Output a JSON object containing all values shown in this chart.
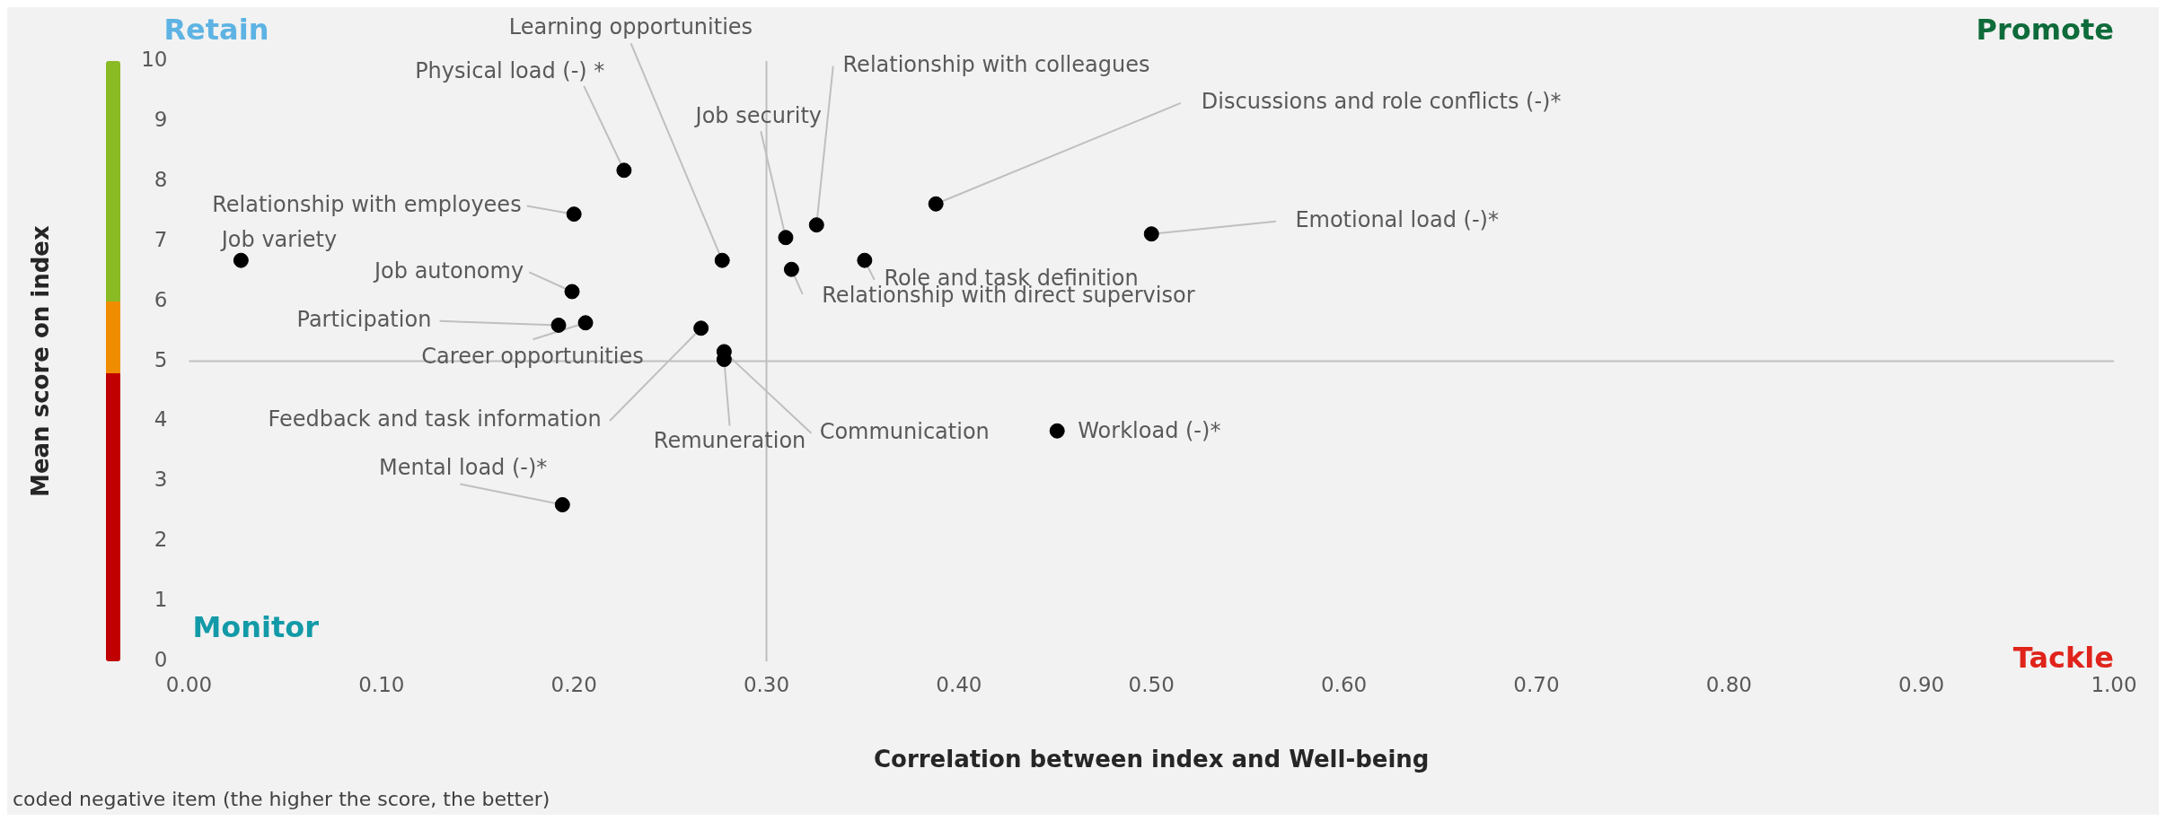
{
  "chart_data": {
    "type": "scatter",
    "xlabel": "Correlation between index and Well-being",
    "ylabel": "Mean score on index",
    "xlim": [
      0,
      1
    ],
    "ylim": [
      0,
      10
    ],
    "xticks": [
      {
        "value": 0,
        "label": "0.00"
      },
      {
        "value": 0.1,
        "label": "0.10"
      },
      {
        "value": 0.2,
        "label": "0.20"
      },
      {
        "value": 0.3,
        "label": "0.30"
      },
      {
        "value": 0.4,
        "label": "0.40"
      },
      {
        "value": 0.5,
        "label": "0.50"
      },
      {
        "value": 0.6,
        "label": "0.60"
      },
      {
        "value": 0.7,
        "label": "0.70"
      },
      {
        "value": 0.8,
        "label": "0.80"
      },
      {
        "value": 0.9,
        "label": "0.90"
      },
      {
        "value": 1,
        "label": "1.00"
      }
    ],
    "yticks": [
      0,
      1,
      2,
      3,
      4,
      5,
      6,
      7,
      8,
      9,
      10
    ],
    "grid": false,
    "legend": false,
    "marker": "circle",
    "series": [
      {
        "name": "Job variety",
        "color": "#000000",
        "x": [
          0.027
        ],
        "values": [
          6.68
        ]
      },
      {
        "name": "Physical load (-) *",
        "color": "#000000",
        "x": [
          0.226
        ],
        "values": [
          8.18
        ]
      },
      {
        "name": "Relationship with employees",
        "color": "#000000",
        "x": [
          0.2
        ],
        "values": [
          7.45
        ]
      },
      {
        "name": "Learning opportunities",
        "color": "#000000",
        "x": [
          0.277
        ],
        "values": [
          6.68
        ]
      },
      {
        "name": "Job autonomy",
        "color": "#000000",
        "x": [
          0.199
        ],
        "values": [
          6.16
        ]
      },
      {
        "name": "Participation",
        "color": "#000000",
        "x": [
          0.192
        ],
        "values": [
          5.6
        ]
      },
      {
        "name": "Career opportunities",
        "color": "#000000",
        "x": [
          0.206
        ],
        "values": [
          5.64
        ]
      },
      {
        "name": "Feedback and task information",
        "color": "#000000",
        "x": [
          0.266
        ],
        "values": [
          5.55
        ]
      },
      {
        "name": "Communication",
        "color": "#000000",
        "x": [
          0.278
        ],
        "values": [
          5.16
        ]
      },
      {
        "name": "Remuneration",
        "color": "#000000",
        "x": [
          0.278
        ],
        "values": [
          5.03
        ]
      },
      {
        "name": "Job security",
        "color": "#000000",
        "x": [
          0.31
        ],
        "values": [
          7.06
        ]
      },
      {
        "name": "Relationship with colleagues",
        "color": "#000000",
        "x": [
          0.326
        ],
        "values": [
          7.27
        ]
      },
      {
        "name": "Relationship with direct supervisor",
        "color": "#000000",
        "x": [
          0.313
        ],
        "values": [
          6.53
        ]
      },
      {
        "name": "Role and task definition",
        "color": "#000000",
        "x": [
          0.351
        ],
        "values": [
          6.68
        ]
      },
      {
        "name": "Discussions and role conflicts (-)*",
        "color": "#000000",
        "x": [
          0.388
        ],
        "values": [
          7.62
        ]
      },
      {
        "name": "Emotional load (-)*",
        "color": "#000000",
        "x": [
          0.5
        ],
        "values": [
          7.12
        ]
      },
      {
        "name": "Workload (-)*",
        "color": "#000000",
        "x": [
          0.451
        ],
        "values": [
          3.84
        ]
      },
      {
        "name": "Mental load (-)*",
        "color": "#000000",
        "x": [
          0.194
        ],
        "values": [
          2.61
        ]
      }
    ],
    "ref_lines": [
      {
        "axis": "x",
        "value": 0.3,
        "color": "#bfbfbf"
      },
      {
        "axis": "y",
        "value": 5,
        "color": "#bfbfbf"
      }
    ],
    "annotations": [
      "Retain",
      "Promote",
      "Monitor",
      "Tackle",
      "coded negative item (the higher the score, the better)"
    ]
  }
}
